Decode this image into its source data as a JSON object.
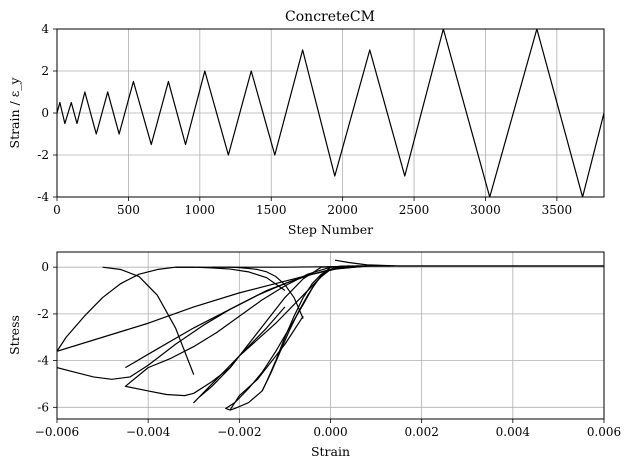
{
  "figure_title": "ConcreteCM",
  "chart_data": [
    {
      "type": "line",
      "title": "ConcreteCM",
      "xlabel": "Step Number",
      "ylabel": "Strain / ε_y",
      "xlim": [
        0,
        3830
      ],
      "ylim": [
        -4,
        4
      ],
      "xticks": [
        0,
        500,
        1000,
        1500,
        2000,
        2500,
        3000,
        3500
      ],
      "yticks": [
        -4,
        -2,
        0,
        2,
        4
      ],
      "grid": true,
      "series": [
        {
          "x": [
            0,
            20,
            55,
            100,
            140,
            195,
            275,
            355,
            435,
            535,
            660,
            780,
            900,
            1035,
            1200,
            1360,
            1525,
            1720,
            1945,
            2190,
            2435,
            2705,
            3030,
            3360,
            3680,
            3830
          ],
          "values": [
            0,
            0.5,
            -0.5,
            0.5,
            -0.5,
            1,
            -1,
            1,
            -1,
            1.5,
            -1.5,
            1.5,
            -1.5,
            2,
            -2,
            2,
            -2,
            3,
            -3,
            3,
            -3,
            4,
            -4,
            4,
            -4,
            0
          ]
        }
      ]
    },
    {
      "type": "line",
      "title": "",
      "xlabel": "Strain",
      "ylabel": "Stress",
      "xlim": [
        -0.006,
        0.006
      ],
      "ylim": [
        -6.5,
        0.65
      ],
      "xticks": [
        -0.006,
        -0.004,
        -0.002,
        0.0,
        0.002,
        0.004,
        0.006
      ],
      "xtick_labels": [
        "−0.006",
        "−0.004",
        "−0.002",
        "0.000",
        "0.002",
        "0.004",
        "0.006"
      ],
      "yticks": [
        -6,
        -4,
        -2,
        0
      ],
      "grid": true,
      "series": [
        {
          "x": [
            0.0013,
            0.0006,
            0.0002,
            0.0,
            -0.0002,
            -0.0004,
            -0.0006,
            -0.0008,
            -0.001,
            -0.0012,
            -0.0014,
            -0.0015
          ],
          "values": [
            0.05,
            0.05,
            0.0,
            -0.1,
            -0.3,
            -0.7,
            -1.3,
            -2.1,
            -3.0,
            -4.0,
            -4.9,
            -5.3
          ]
        },
        {
          "x": [
            -0.0015,
            -0.0013,
            -0.0011,
            -0.0009,
            -0.0007,
            -0.0005,
            -0.0003,
            -0.0001,
            0.0001,
            0.0004,
            0.001,
            0.0014
          ],
          "values": [
            -5.3,
            -4.5,
            -3.6,
            -2.7,
            -1.9,
            -1.2,
            -0.6,
            -0.2,
            0.0,
            0.05,
            0.05,
            0.05
          ]
        },
        {
          "x": [
            -0.0015,
            -0.0018,
            -0.0021,
            -0.0022,
            -0.0023,
            -0.0021,
            -0.0018,
            -0.0015,
            -0.0012,
            -0.0009,
            -0.0006,
            -0.0004,
            -0.0002,
            0.0,
            0.0003
          ],
          "values": [
            -5.3,
            -5.8,
            -6.05,
            -6.12,
            -6.05,
            -5.8,
            -5.2,
            -4.5,
            -3.6,
            -2.6,
            -1.6,
            -0.9,
            -0.35,
            0.0,
            0.05
          ]
        },
        {
          "x": [
            -0.0022,
            -0.002,
            -0.0016,
            -0.0012,
            -0.001,
            -0.0008,
            -0.0006
          ],
          "values": [
            -6.1,
            -5.5,
            -4.8,
            -3.8,
            -3.3,
            -2.7,
            -2.1
          ]
        },
        {
          "x": [
            -0.0006,
            -0.0008,
            -0.001,
            -0.0012,
            -0.0014,
            -0.0016,
            -0.0018,
            -0.002,
            -0.0022,
            -0.0024,
            -0.0026
          ],
          "values": [
            -2.2,
            -1.3,
            -0.75,
            -0.4,
            -0.2,
            -0.1,
            -0.05,
            -0.02,
            0.0,
            0.0,
            0.0
          ]
        },
        {
          "x": [
            0.0004,
            -0.0002,
            -0.0006,
            -0.001,
            -0.0014,
            -0.0018,
            -0.0022,
            -0.0026,
            -0.0029,
            -0.003,
            -0.0026,
            -0.0022,
            -0.0018,
            -0.0014,
            -0.001
          ],
          "values": [
            0.05,
            0.0,
            -0.5,
            -1.3,
            -2.3,
            -3.3,
            -4.3,
            -5.1,
            -5.6,
            -5.8,
            -5.0,
            -4.2,
            -3.4,
            -2.6,
            -1.7
          ]
        },
        {
          "x": [
            -0.001,
            -0.0014,
            -0.0018,
            -0.0022,
            -0.0026,
            -0.003,
            -0.0034
          ],
          "values": [
            -1.0,
            -0.45,
            -0.2,
            -0.08,
            -0.03,
            0.0,
            0.0
          ]
        },
        {
          "x": [
            0.0006,
            0.0,
            -0.0005,
            -0.001,
            -0.0015,
            -0.002,
            -0.0025,
            -0.003,
            -0.0035,
            -0.004,
            -0.0045,
            -0.004,
            -0.0036,
            -0.0032,
            -0.003,
            -0.0026,
            -0.0022,
            -0.002,
            -0.0016,
            -0.0012,
            -0.0008,
            -0.0005,
            -0.0002,
            0.0,
            0.0004
          ],
          "values": [
            0.05,
            0.0,
            -0.3,
            -0.8,
            -1.4,
            -2.1,
            -2.8,
            -3.4,
            -3.9,
            -4.3,
            -5.1,
            -5.3,
            -5.45,
            -5.5,
            -5.4,
            -4.9,
            -4.3,
            -3.8,
            -3.1,
            -2.4,
            -1.6,
            -1.0,
            -0.4,
            -0.1,
            0.05
          ]
        },
        {
          "x": [
            -0.003,
            -0.0034,
            -0.0038,
            -0.0042,
            -0.0046,
            -0.005
          ],
          "values": [
            -4.6,
            -2.6,
            -1.2,
            -0.4,
            -0.1,
            0.0
          ]
        },
        {
          "x": [
            0.0008,
            0.0,
            -0.001,
            -0.002,
            -0.003,
            -0.004,
            -0.005,
            -0.006
          ],
          "values": [
            0.05,
            -0.1,
            -0.6,
            -1.1,
            -1.7,
            -2.4,
            -3.0,
            -3.6
          ]
        },
        {
          "x": [
            -0.006,
            -0.0056,
            -0.0052,
            -0.0048,
            -0.0044,
            -0.004
          ],
          "values": [
            -4.3,
            -4.5,
            -4.7,
            -4.8,
            -4.7,
            -4.2
          ]
        },
        {
          "x": [
            -0.006,
            -0.0058,
            -0.0054,
            -0.005,
            -0.0046,
            -0.0042,
            -0.0038,
            -0.0034,
            -0.003
          ],
          "values": [
            -3.6,
            -3.0,
            -2.1,
            -1.3,
            -0.7,
            -0.3,
            -0.1,
            0.0,
            0.0
          ]
        },
        {
          "x": [
            -0.004,
            -0.0034,
            -0.0028,
            -0.0022,
            -0.0016,
            -0.001,
            -0.0004,
            0.0002,
            0.0008
          ],
          "values": [
            -4.2,
            -3.3,
            -2.5,
            -1.8,
            -1.2,
            -0.7,
            -0.3,
            -0.05,
            0.05
          ]
        },
        {
          "x": [
            -0.0045,
            -0.0038,
            -0.003,
            -0.0022,
            -0.0014,
            -0.0006,
            0.0,
            0.0006
          ],
          "values": [
            -4.3,
            -3.5,
            -2.6,
            -1.8,
            -1.0,
            -0.4,
            -0.1,
            0.05
          ]
        },
        {
          "x": [
            0.0001,
            0.0004,
            0.0008,
            0.0015,
            0.003,
            0.005,
            0.006
          ],
          "values": [
            0.3,
            0.2,
            0.1,
            0.05,
            0.05,
            0.05,
            0.05
          ]
        },
        {
          "x": [
            -0.0034,
            -0.002,
            -0.001,
            0.0,
            0.001,
            0.003,
            0.006
          ],
          "values": [
            0.0,
            0.0,
            0.0,
            0.02,
            0.05,
            0.05,
            0.05
          ]
        }
      ]
    }
  ]
}
